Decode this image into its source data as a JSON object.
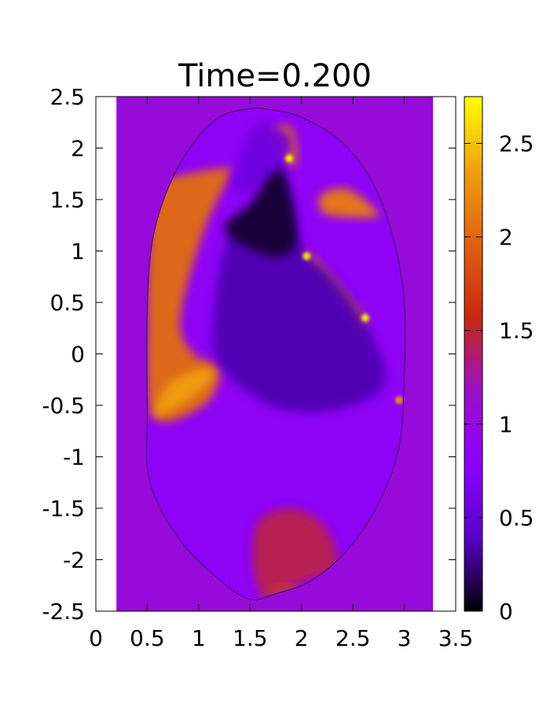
{
  "chart_data": {
    "type": "heatmap",
    "title": "Time=0.200",
    "xlabel": "",
    "ylabel": "",
    "xlim": [
      0,
      3.5
    ],
    "ylim": [
      -2.5,
      2.5
    ],
    "x_ticks": [
      0,
      0.5,
      1,
      1.5,
      2,
      2.5,
      3,
      3.5
    ],
    "x_tick_labels": [
      "0",
      "0.5",
      "1",
      "1.5",
      "2",
      "2.5",
      "3",
      "3.5"
    ],
    "y_ticks": [
      2.5,
      2,
      1.5,
      1,
      0.5,
      0,
      -0.5,
      -1,
      -1.5,
      -2,
      -2.5
    ],
    "y_tick_labels": [
      "2.5",
      "2",
      "1.5",
      "1",
      "0.5",
      "0",
      "-0.5",
      "-1",
      "-1.5",
      "-2",
      "-2.5"
    ],
    "colorbar": {
      "range": [
        0,
        2.75
      ],
      "ticks": [
        2.5,
        2,
        1.5,
        1,
        0.5,
        0
      ],
      "tick_labels": [
        "2.5",
        "2",
        "1.5",
        "1",
        "0.5",
        "0"
      ],
      "colormap": "gnuplot",
      "colors": [
        "#000000",
        "#5a00c8",
        "#8c00ff",
        "#9b10c8",
        "#c82810",
        "#e06010",
        "#f0a010",
        "#ffff00"
      ]
    },
    "domain_x": [
      0.2,
      3.28
    ],
    "domain_y": [
      -2.5,
      2.5
    ],
    "background_value": 1.05,
    "vessel_boundary": [
      [
        1.48,
        2.38
      ],
      [
        1.2,
        2.3
      ],
      [
        0.95,
        2.05
      ],
      [
        0.72,
        1.65
      ],
      [
        0.55,
        1.1
      ],
      [
        0.5,
        0.4
      ],
      [
        0.5,
        -0.6
      ],
      [
        0.5,
        -1.1
      ],
      [
        0.6,
        -1.45
      ],
      [
        0.85,
        -1.85
      ],
      [
        1.15,
        -2.15
      ],
      [
        1.48,
        -2.38
      ],
      [
        1.75,
        -2.33
      ],
      [
        2.1,
        -2.2
      ],
      [
        2.45,
        -1.9
      ],
      [
        2.75,
        -1.45
      ],
      [
        2.95,
        -0.9
      ],
      [
        3.0,
        -0.2
      ],
      [
        3.0,
        0.5
      ],
      [
        2.9,
        1.1
      ],
      [
        2.7,
        1.65
      ],
      [
        2.4,
        2.05
      ],
      [
        2.0,
        2.3
      ],
      [
        1.65,
        2.38
      ]
    ],
    "fill_value": 0.85,
    "regions": [
      {
        "value": 2.05,
        "points": [
          [
            0.55,
            1.6
          ],
          [
            0.7,
            1.7
          ],
          [
            1.2,
            1.8
          ],
          [
            1.3,
            1.75
          ],
          [
            1.05,
            1.2
          ],
          [
            0.82,
            0.35
          ],
          [
            0.95,
            0.0
          ],
          [
            1.2,
            -0.15
          ],
          [
            1.05,
            -0.5
          ],
          [
            0.55,
            -0.6
          ],
          [
            0.5,
            0.4
          ],
          [
            0.52,
            1.1
          ]
        ]
      },
      {
        "value": 2.35,
        "points": [
          [
            0.58,
            -0.6
          ],
          [
            0.7,
            -0.3
          ],
          [
            1.0,
            -0.15
          ],
          [
            1.15,
            -0.2
          ],
          [
            0.9,
            -0.45
          ]
        ]
      },
      {
        "value": 2.15,
        "points": [
          [
            2.2,
            1.55
          ],
          [
            2.45,
            1.6
          ],
          [
            2.75,
            1.35
          ],
          [
            2.45,
            1.33
          ],
          [
            2.2,
            1.38
          ]
        ]
      },
      {
        "value": 2.1,
        "points": [
          [
            1.7,
            2.15
          ],
          [
            1.9,
            2.2
          ],
          [
            1.95,
            1.85
          ],
          [
            1.8,
            1.9
          ]
        ]
      },
      {
        "value": 2.1,
        "points": [
          [
            2.05,
            1.0
          ],
          [
            2.2,
            0.85
          ],
          [
            2.45,
            0.55
          ],
          [
            2.6,
            0.35
          ],
          [
            2.55,
            0.2
          ],
          [
            2.35,
            0.5
          ],
          [
            2.1,
            0.85
          ]
        ]
      },
      {
        "value": 0.55,
        "points": [
          [
            1.55,
            2.2
          ],
          [
            1.9,
            2.1
          ],
          [
            1.75,
            1.7
          ],
          [
            1.35,
            1.6
          ]
        ]
      },
      {
        "value": 0.35,
        "points": [
          [
            1.28,
            1.1
          ],
          [
            1.6,
            1.5
          ],
          [
            1.82,
            1.78
          ],
          [
            2.0,
            1.05
          ],
          [
            2.3,
            0.75
          ],
          [
            2.65,
            0.25
          ],
          [
            2.8,
            -0.3
          ],
          [
            2.3,
            -0.55
          ],
          [
            1.7,
            -0.5
          ],
          [
            1.2,
            -0.1
          ],
          [
            1.15,
            0.4
          ]
        ]
      },
      {
        "value": 0.1,
        "points": [
          [
            1.25,
            1.2
          ],
          [
            1.5,
            1.45
          ],
          [
            1.8,
            1.78
          ],
          [
            1.95,
            1.1
          ],
          [
            1.7,
            0.95
          ]
        ]
      },
      {
        "value": 1.45,
        "points": [
          [
            1.6,
            -2.3
          ],
          [
            1.55,
            -1.7
          ],
          [
            1.85,
            -1.5
          ],
          [
            2.2,
            -1.65
          ],
          [
            2.35,
            -2.05
          ],
          [
            2.05,
            -2.2
          ]
        ]
      },
      {
        "value": 1.8,
        "points": [
          [
            1.55,
            -2.38
          ],
          [
            1.75,
            -2.33
          ],
          [
            2.0,
            -2.3
          ],
          [
            1.8,
            -2.25
          ]
        ]
      }
    ],
    "hotspots": [
      {
        "x": 2.05,
        "y": 0.95,
        "value": 2.7
      },
      {
        "x": 2.62,
        "y": 0.35,
        "value": 2.7
      },
      {
        "x": 1.88,
        "y": 1.9,
        "value": 2.7
      },
      {
        "x": 2.95,
        "y": -0.45,
        "value": 2.3
      }
    ]
  }
}
